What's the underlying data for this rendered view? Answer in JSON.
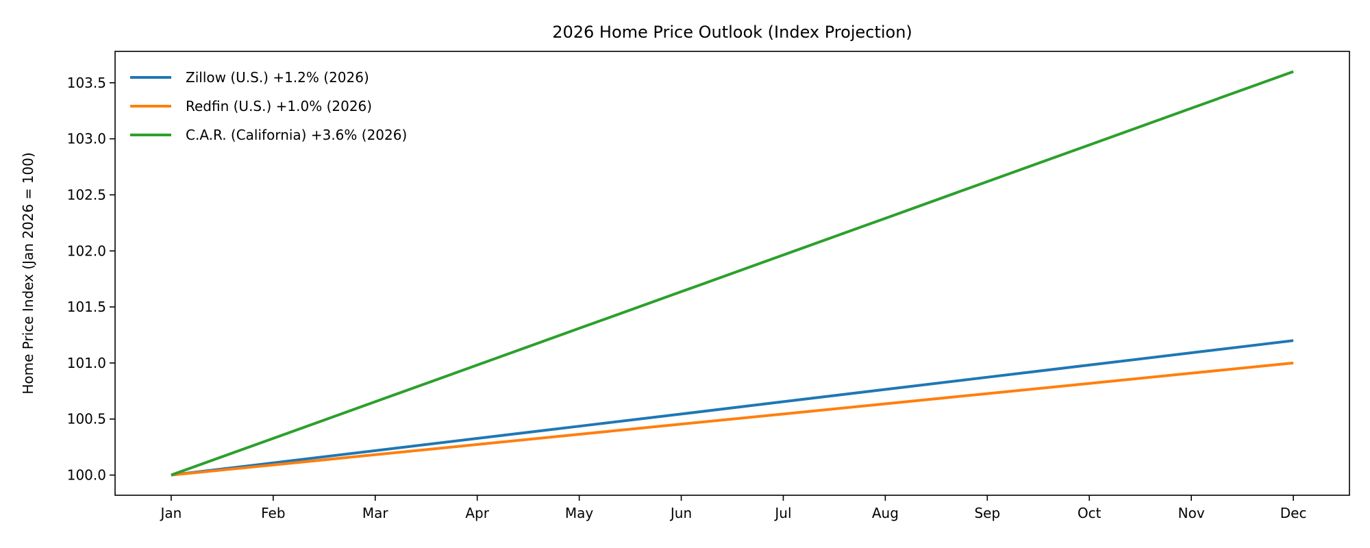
{
  "chart_data": {
    "type": "line",
    "title": "2026 Home Price Outlook (Index Projection)",
    "xlabel": "",
    "ylabel": "Home Price Index (Jan 2026 = 100)",
    "categories": [
      "Jan",
      "Feb",
      "Mar",
      "Apr",
      "May",
      "Jun",
      "Jul",
      "Aug",
      "Sep",
      "Oct",
      "Nov",
      "Dec"
    ],
    "ylim": [
      99.82,
      103.78
    ],
    "yticks": [
      "100.0",
      "100.5",
      "101.0",
      "101.5",
      "102.0",
      "102.5",
      "103.0",
      "103.5"
    ],
    "grid": false,
    "legend_position": "top-left",
    "series": [
      {
        "name": "Zillow (U.S.) +1.2% (2026)",
        "color": "#1f77b4",
        "values": [
          100.0,
          100.109,
          100.218,
          100.327,
          100.436,
          100.545,
          100.655,
          100.764,
          100.873,
          100.982,
          101.091,
          101.2
        ]
      },
      {
        "name": "Redfin (U.S.) +1.0% (2026)",
        "color": "#ff7f0e",
        "values": [
          100.0,
          100.091,
          100.182,
          100.273,
          100.364,
          100.455,
          100.545,
          100.636,
          100.727,
          100.818,
          100.909,
          101.0
        ]
      },
      {
        "name": "C.A.R. (California) +3.6% (2026)",
        "color": "#2ca02c",
        "values": [
          100.0,
          100.327,
          100.655,
          100.982,
          101.309,
          101.636,
          101.964,
          102.291,
          102.618,
          102.945,
          103.273,
          103.6
        ]
      }
    ]
  }
}
